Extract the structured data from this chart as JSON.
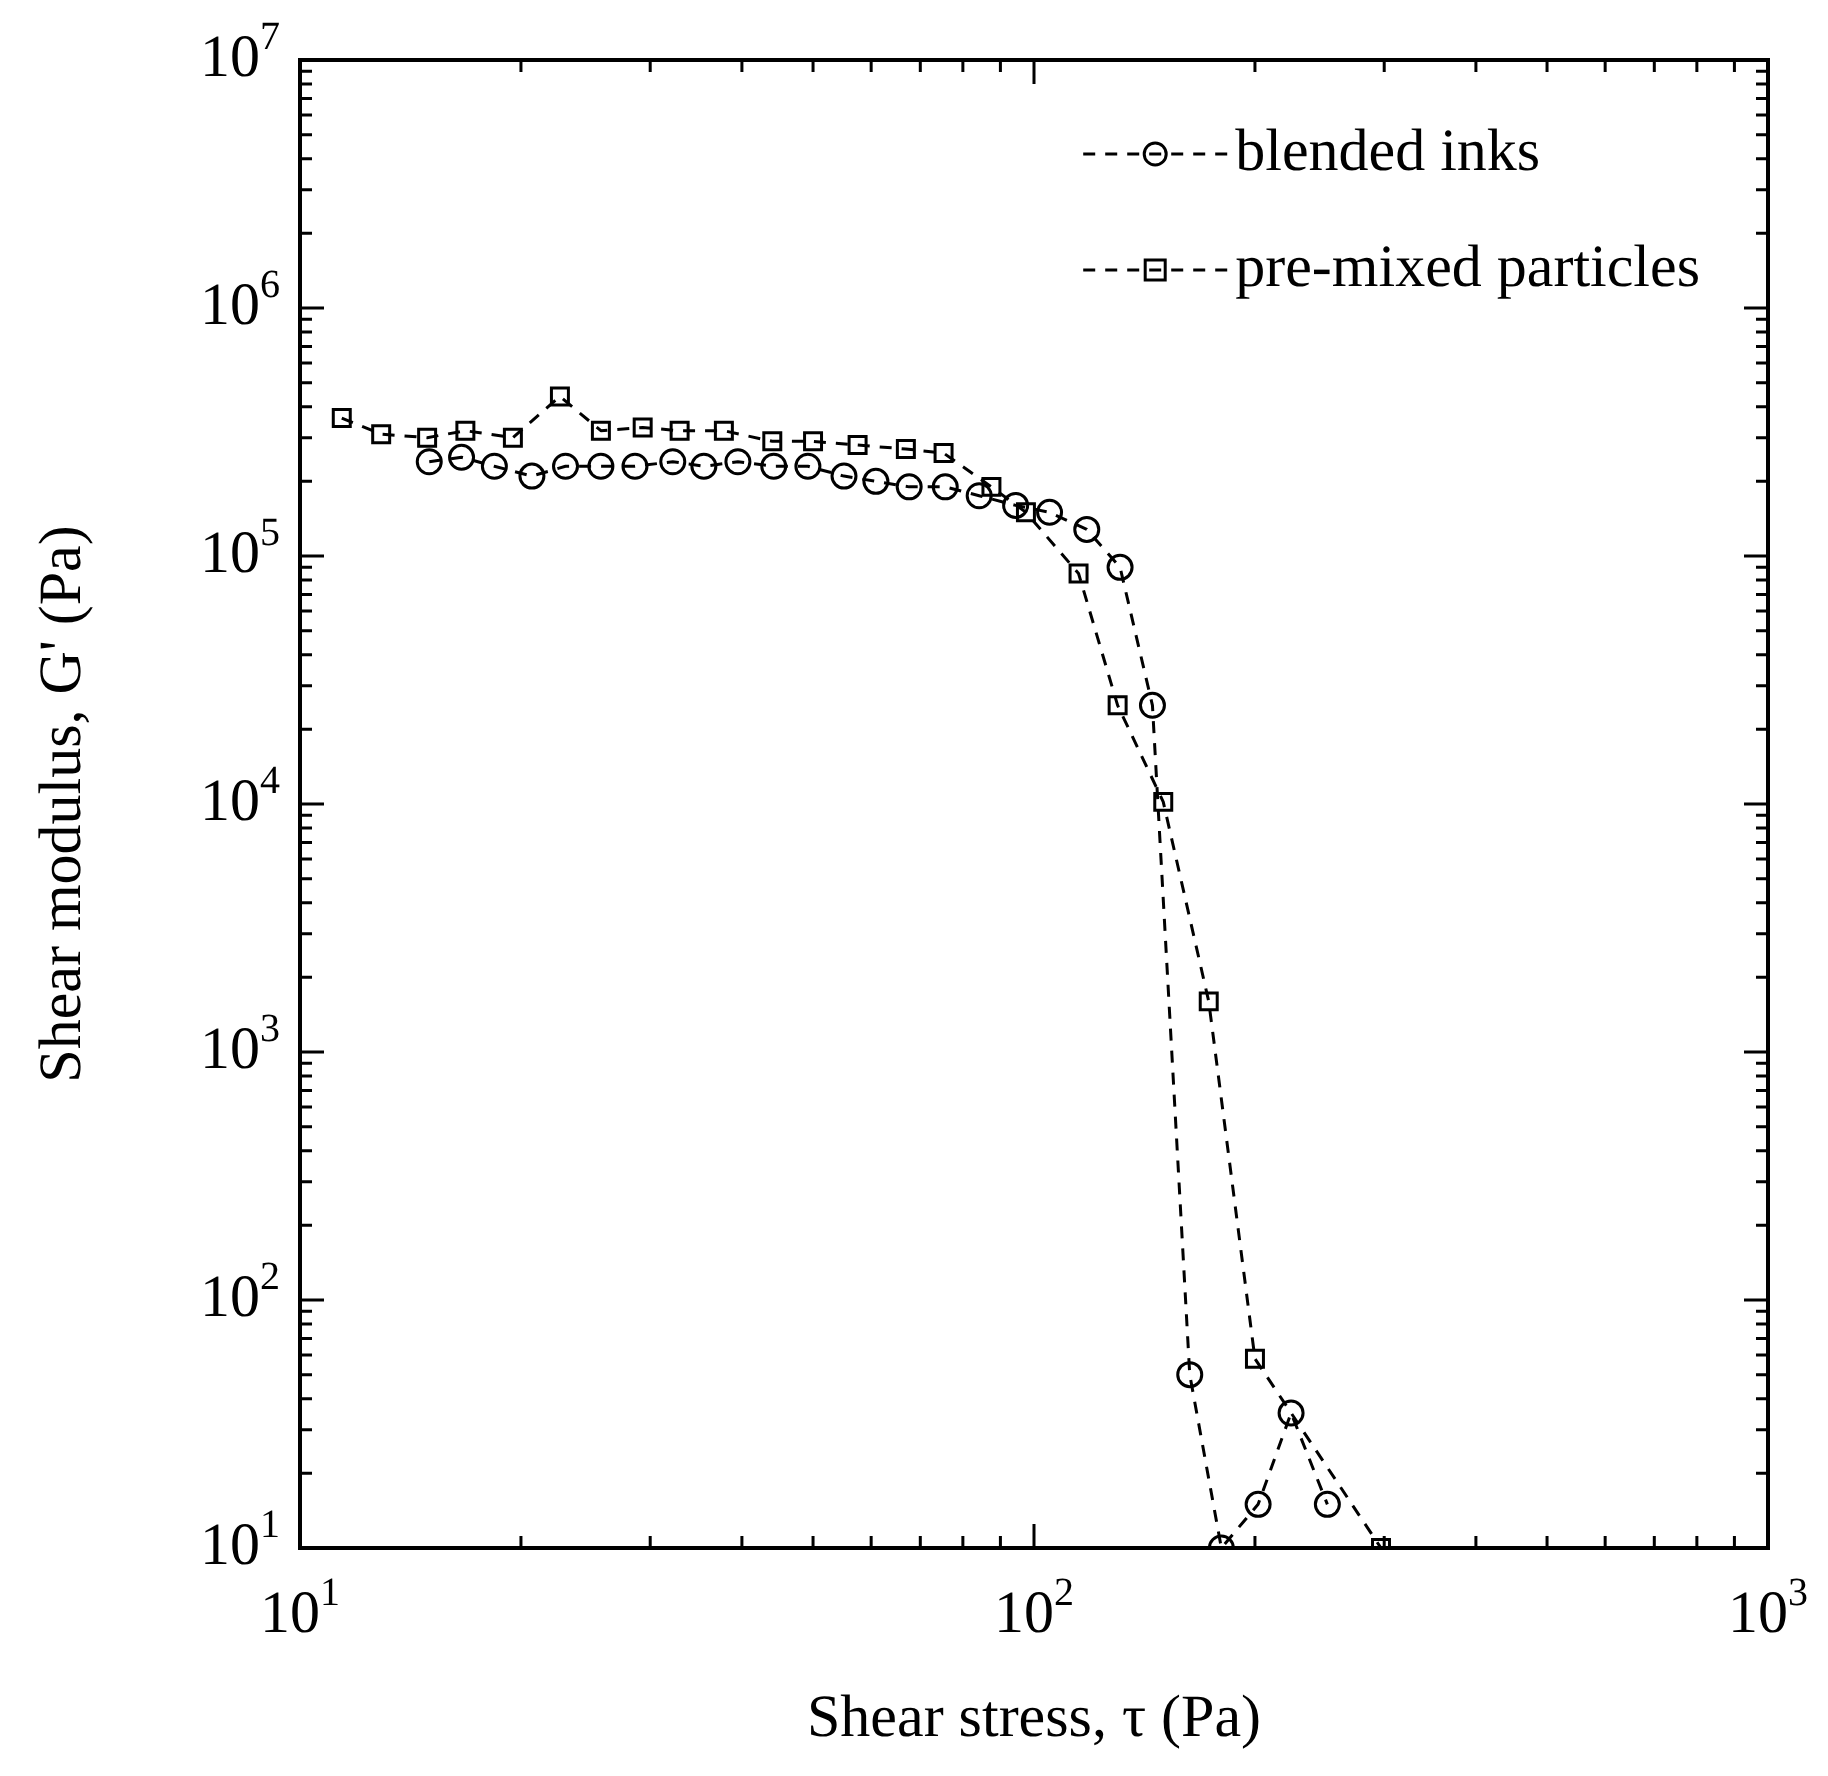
{
  "chart_data": {
    "type": "line",
    "xlabel": "Shear stress, τ (Pa)",
    "ylabel": "Shear modulus, G' (Pa)",
    "log": "xy",
    "line_style": "dashed",
    "legend": "top right",
    "grid": false,
    "xlim": [
      10,
      1000
    ],
    "xticks": [
      {
        "value": 10,
        "label": "10$^{1}$"
      },
      {
        "value": 100,
        "label": "10$^{2}$"
      },
      {
        "value": 1000,
        "label": "10$^{3}$"
      }
    ],
    "ylim": [
      10,
      10000000
    ],
    "yticks": [
      {
        "value": 10,
        "label": "10$^{1}$"
      },
      {
        "value": 100,
        "label": "10$^{2}$"
      },
      {
        "value": 1000,
        "label": "10$^{3}$"
      },
      {
        "value": 10000,
        "label": "10$^{4}$"
      },
      {
        "value": 100000,
        "label": "10$^{5}$"
      },
      {
        "value": 1000000,
        "label": "10$^{6}$"
      },
      {
        "value": 10000000,
        "label": "10$^{7}$"
      }
    ],
    "series": [
      {
        "name": "blended inks",
        "color": "#000000",
        "marker": "circle",
        "x": [
          15.0,
          16.6,
          18.4,
          20.7,
          23.0,
          25.7,
          28.6,
          32.2,
          35.5,
          39.5,
          44.2,
          49.2,
          55.1,
          60.9,
          67.6,
          75.7,
          84.2,
          94.4,
          105,
          118,
          131,
          145,
          163,
          180,
          202,
          224,
          251
        ],
        "values": [
          240000,
          250000,
          230000,
          210000,
          230000,
          230000,
          230000,
          240000,
          230000,
          240000,
          230000,
          230000,
          210000,
          200000,
          190000,
          190000,
          175000,
          160000,
          150000,
          128000,
          90000,
          25000,
          50,
          10,
          15,
          35,
          15
        ]
      },
      {
        "name": "pre-mixed particles",
        "color": "#000000",
        "marker": "square",
        "x": [
          11.4,
          12.9,
          14.9,
          16.8,
          19.5,
          22.6,
          25.7,
          29.3,
          32.9,
          37.8,
          44.0,
          50.0,
          57.5,
          66.9,
          75.3,
          87.5,
          97.5,
          115,
          130,
          150,
          173,
          200,
          297
        ],
        "values": [
          360000,
          310000,
          300000,
          320000,
          300000,
          440000,
          320000,
          330000,
          320000,
          320000,
          290000,
          290000,
          280000,
          270000,
          260000,
          190000,
          150000,
          85000,
          25000,
          10200,
          1600,
          58,
          10
        ]
      }
    ]
  }
}
